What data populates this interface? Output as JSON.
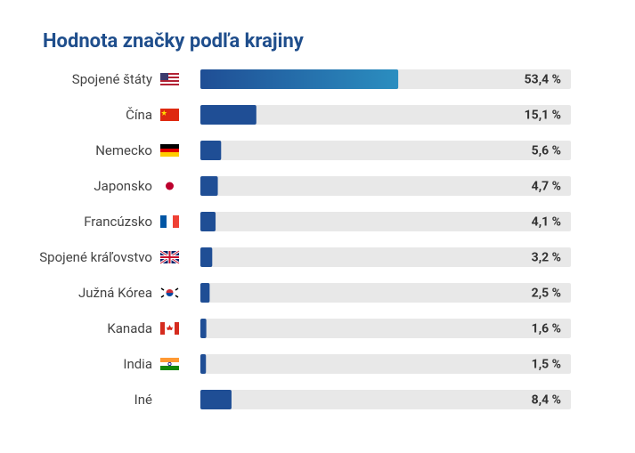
{
  "chart_data": {
    "type": "bar",
    "orientation": "horizontal",
    "title": "Hodnota značky podľa krajiny",
    "categories": [
      "Spojené štáty",
      "Čína",
      "Nemecko",
      "Japonsko",
      "Francúzsko",
      "Spojené kráľovstvo",
      "Južná Kórea",
      "Kanada",
      "India",
      "Iné"
    ],
    "values": [
      53.4,
      15.1,
      5.6,
      4.7,
      4.1,
      3.2,
      2.5,
      1.6,
      1.5,
      8.4
    ],
    "value_labels": [
      "53,4 %",
      "15,1 %",
      "5,6 %",
      "4,7 %",
      "4,1 %",
      "3,2 %",
      "2,5 %",
      "1,6 %",
      "1,5 %",
      "8,4 %"
    ],
    "color": "#1f4e95",
    "xlim": [
      0,
      100
    ]
  }
}
